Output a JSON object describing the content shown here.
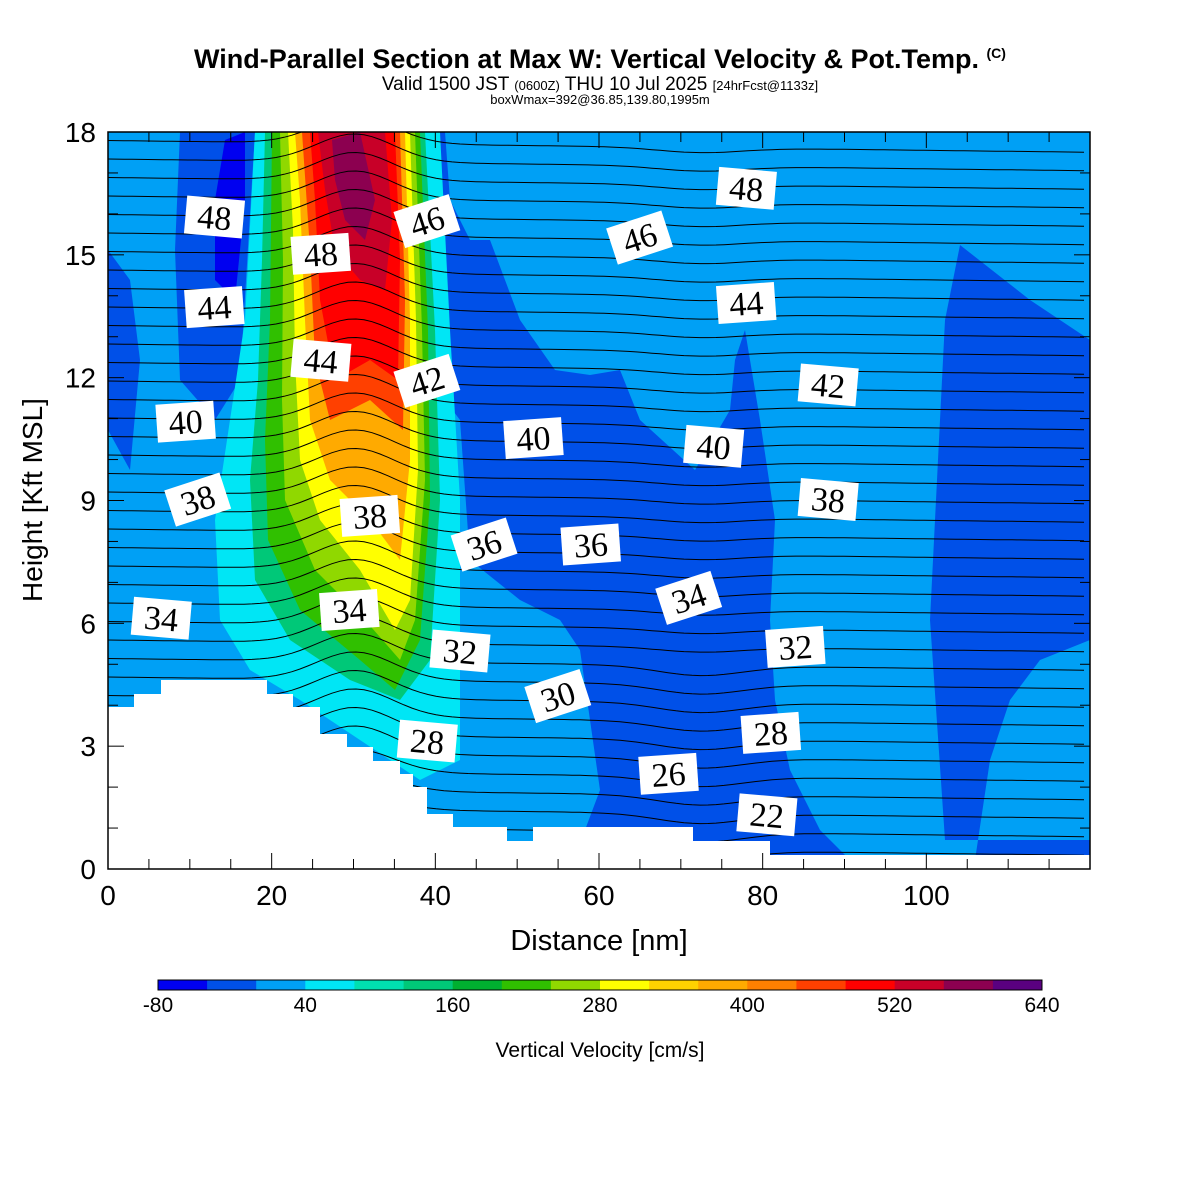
{
  "header": {
    "title": "Wind-Parallel Section at Max W: Vertical Velocity & Pot.Temp.",
    "title_mark": "(C)",
    "valid_prefix": "Valid 1500 JST",
    "valid_zulu": "(0600Z)",
    "valid_date": "THU 10 Jul 2025",
    "forecast": "[24hrFcst@1133z]",
    "box_info": "boxWmax=392@36.85,139.80,1995m"
  },
  "chart_data": {
    "type": "heatmap",
    "xlabel": "Distance [nm]",
    "ylabel": "Height [Kft MSL]",
    "xlim": [
      0,
      120
    ],
    "ylim": [
      0,
      18
    ],
    "x_ticks": [
      0,
      20,
      40,
      60,
      80,
      100
    ],
    "y_ticks": [
      0,
      3,
      6,
      9,
      12,
      15,
      18
    ],
    "colorbar": {
      "label": "Vertical Velocity [cm/s]",
      "min": -80,
      "step": 40,
      "tick_labels": [
        "-80",
        "40",
        "160",
        "280",
        "400",
        "520",
        "640"
      ],
      "colors": [
        "#0000f0",
        "#0050e8",
        "#00a0f5",
        "#00e6f5",
        "#00e0b0",
        "#00c878",
        "#00b030",
        "#30c000",
        "#90d800",
        "#ffff00",
        "#ffd200",
        "#ffaa00",
        "#ff8000",
        "#ff4000",
        "#ff0000",
        "#c80028",
        "#8c0050",
        "#5a0080"
      ]
    },
    "theta_contour_labels": [
      {
        "text": "48",
        "x": 13,
        "y": 15.9
      },
      {
        "text": "48",
        "x": 26,
        "y": 15.0
      },
      {
        "text": "46",
        "x": 39,
        "y": 15.8
      },
      {
        "text": "48",
        "x": 78,
        "y": 16.6
      },
      {
        "text": "46",
        "x": 65,
        "y": 15.4
      },
      {
        "text": "44",
        "x": 13,
        "y": 13.7
      },
      {
        "text": "44",
        "x": 26,
        "y": 12.4
      },
      {
        "text": "44",
        "x": 78,
        "y": 13.8
      },
      {
        "text": "42",
        "x": 39,
        "y": 11.9
      },
      {
        "text": "42",
        "x": 88,
        "y": 11.8
      },
      {
        "text": "40",
        "x": 9.5,
        "y": 10.9
      },
      {
        "text": "40",
        "x": 52,
        "y": 10.5
      },
      {
        "text": "40",
        "x": 74,
        "y": 10.3
      },
      {
        "text": "38",
        "x": 11,
        "y": 9.0
      },
      {
        "text": "38",
        "x": 32,
        "y": 8.6
      },
      {
        "text": "38",
        "x": 88,
        "y": 9.0
      },
      {
        "text": "36",
        "x": 46,
        "y": 7.9
      },
      {
        "text": "36",
        "x": 59,
        "y": 7.9
      },
      {
        "text": "34",
        "x": 6.5,
        "y": 6.1
      },
      {
        "text": "34",
        "x": 29.5,
        "y": 6.3
      },
      {
        "text": "34",
        "x": 71,
        "y": 6.6
      },
      {
        "text": "32",
        "x": 43,
        "y": 5.3
      },
      {
        "text": "32",
        "x": 84,
        "y": 5.4
      },
      {
        "text": "30",
        "x": 55,
        "y": 4.2
      },
      {
        "text": "28",
        "x": 39,
        "y": 3.1
      },
      {
        "text": "28",
        "x": 81,
        "y": 3.3
      },
      {
        "text": "26",
        "x": 68.5,
        "y": 2.3
      },
      {
        "text": "22",
        "x": 80.5,
        "y": 1.3
      }
    ]
  }
}
